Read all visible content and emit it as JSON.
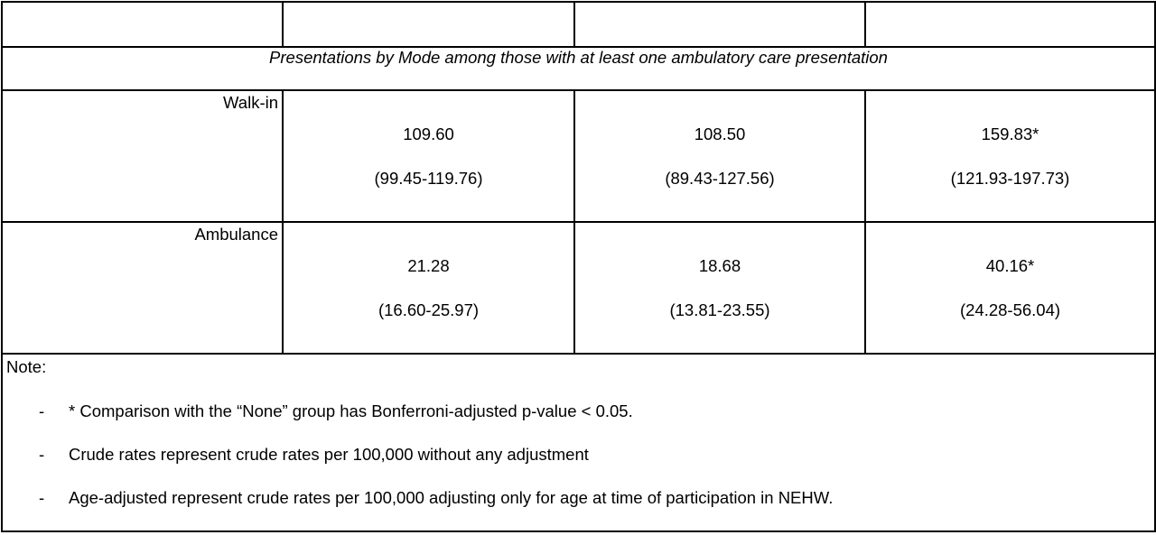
{
  "table": {
    "header": [
      "",
      "",
      "",
      ""
    ],
    "section_title": "Presentations by Mode among those with at least one ambulatory care presentation",
    "rows": [
      {
        "label": "Walk-in",
        "cells": [
          {
            "value": "109.60",
            "ci": "(99.45-119.76)"
          },
          {
            "value": "108.50",
            "ci": "(89.43-127.56)"
          },
          {
            "value": "159.83*",
            "ci": "(121.93-197.73)"
          }
        ]
      },
      {
        "label": "Ambulance",
        "cells": [
          {
            "value": "21.28",
            "ci": "(16.60-25.97)"
          },
          {
            "value": "18.68",
            "ci": "(13.81-23.55)"
          },
          {
            "value": "40.16*",
            "ci": "(24.28-56.04)"
          }
        ]
      }
    ],
    "note": {
      "title": "Note:",
      "bullet": "-",
      "items": [
        "* Comparison with the “None” group has Bonferroni-adjusted p-value < 0.05.",
        "Crude rates represent crude rates per 100,000 without any adjustment",
        "Age-adjusted represent crude rates per 100,000 adjusting only for age at time of participation in NEHW."
      ]
    }
  }
}
